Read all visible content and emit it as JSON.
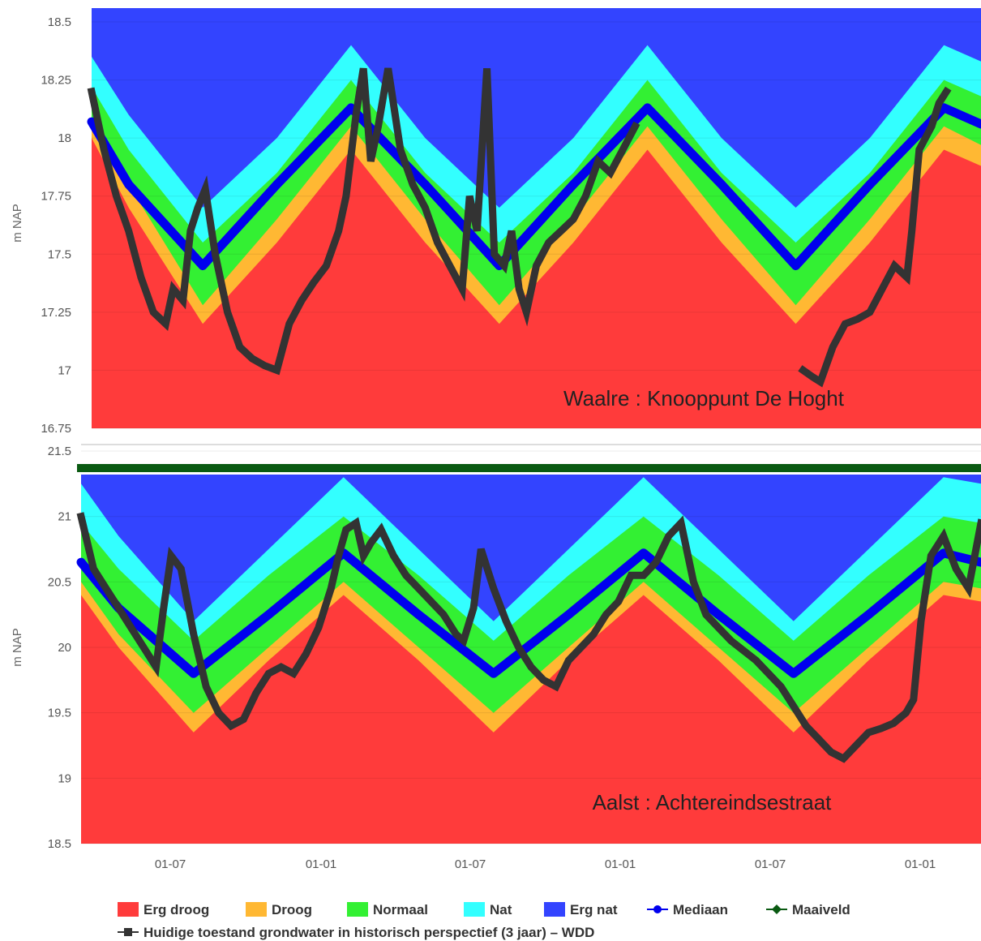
{
  "chart_data": {
    "type": "area",
    "x_ticks": [
      "01-07",
      "01-01",
      "01-07",
      "01-01",
      "01-07",
      "01-01"
    ],
    "colors": {
      "erg_droog": "#ff3b3b",
      "droog": "#ffb833",
      "normaal": "#33f033",
      "nat": "#33ffff",
      "erg_nat": "#3344ff",
      "mediaan": "#0000ee",
      "maaiveld": "#0a5a12",
      "wdd": "#333333"
    },
    "legend": {
      "placement": "bottom",
      "items": [
        {
          "key": "erg_droog",
          "label": "Erg droog",
          "symbol": "box"
        },
        {
          "key": "droog",
          "label": "Droog",
          "symbol": "box"
        },
        {
          "key": "normaal",
          "label": "Normaal",
          "symbol": "box"
        },
        {
          "key": "nat",
          "label": "Nat",
          "symbol": "box"
        },
        {
          "key": "erg_nat",
          "label": "Erg nat",
          "symbol": "box"
        },
        {
          "key": "mediaan",
          "label": "Mediaan",
          "symbol": "line-dot"
        },
        {
          "key": "maaiveld",
          "label": "Maaiveld",
          "symbol": "line-diamond"
        },
        {
          "key": "wdd",
          "label": "Huidige toestand grondwater in historisch perspectief (3 jaar) – WDD",
          "symbol": "line-square"
        }
      ]
    },
    "panels": [
      {
        "label": "Waalre : Knooppunt De Hoght",
        "ylabel": "m NAP",
        "ylim": [
          16.75,
          18.5
        ],
        "yticks": [
          "18.5",
          "18.25",
          "18",
          "17.75",
          "17.5",
          "17.25",
          "17",
          "16.75"
        ],
        "bands": {
          "x": [
            0,
            1.5,
            4.5,
            7.5,
            10.5,
            13.5,
            16.5,
            19.5,
            22.5,
            25.5,
            28.5,
            31.5,
            34.5,
            36
          ],
          "droog_bottom": [
            18.0,
            17.7,
            17.2,
            17.55,
            17.95,
            17.55,
            17.2,
            17.55,
            17.95,
            17.55,
            17.2,
            17.55,
            17.95,
            17.88
          ],
          "normaal_bottom": [
            18.05,
            17.8,
            17.28,
            17.65,
            18.05,
            17.65,
            17.28,
            17.65,
            18.05,
            17.65,
            17.28,
            17.65,
            18.05,
            17.97
          ],
          "nat_bottom": [
            18.22,
            17.95,
            17.55,
            17.85,
            18.25,
            17.85,
            17.55,
            17.85,
            18.25,
            17.85,
            17.55,
            17.85,
            18.25,
            18.18
          ],
          "ergnat_bottom": [
            18.35,
            18.1,
            17.7,
            18.0,
            18.4,
            18.0,
            17.7,
            18.0,
            18.4,
            18.0,
            17.7,
            18.0,
            18.4,
            18.33
          ]
        },
        "mediaan": {
          "x": [
            0,
            1.5,
            4.5,
            7.5,
            10.5,
            13.5,
            16.5,
            19.5,
            22.5,
            25.5,
            28.5,
            31.5,
            34.5,
            36
          ],
          "y": [
            18.07,
            17.8,
            17.45,
            17.8,
            18.13,
            17.8,
            17.45,
            17.8,
            18.13,
            17.8,
            17.45,
            17.8,
            18.13,
            18.06
          ]
        },
        "wdd": [
          {
            "x": [
              0,
              0.5,
              1,
              1.5,
              2,
              2.5,
              3,
              3.3,
              3.7,
              4,
              4.3,
              4.6,
              5,
              5.5,
              6,
              6.5,
              7,
              7.5,
              8,
              8.5,
              9,
              9.5,
              10,
              10.3,
              10.7,
              11,
              11.3,
              11.6,
              12,
              12.5,
              13,
              13.5,
              14,
              14.5,
              15,
              15.3,
              15.6,
              16,
              16.3,
              16.7,
              17,
              17.3,
              17.6,
              18,
              18.5,
              19,
              19.5,
              20,
              20.5,
              21,
              21.5,
              22
            ],
            "y": [
              18.2,
              17.95,
              17.75,
              17.6,
              17.4,
              17.25,
              17.2,
              17.35,
              17.3,
              17.6,
              17.7,
              17.78,
              17.5,
              17.25,
              17.1,
              17.05,
              17.02,
              17.0,
              17.2,
              17.3,
              17.38,
              17.45,
              17.6,
              17.75,
              18.1,
              18.3,
              17.9,
              18.05,
              18.3,
              17.95,
              17.8,
              17.7,
              17.55,
              17.45,
              17.35,
              17.75,
              17.6,
              18.3,
              17.5,
              17.45,
              17.6,
              17.35,
              17.25,
              17.45,
              17.55,
              17.6,
              17.65,
              17.75,
              17.9,
              17.85,
              17.95,
              18.05
            ]
          },
          {
            "x": [
              28.8,
              29.2,
              29.5,
              30,
              30.5,
              31,
              31.5,
              32,
              32.5,
              33,
              33.2,
              33.5,
              34,
              34.3,
              34.6
            ],
            "y": [
              17.0,
              16.97,
              16.95,
              17.1,
              17.2,
              17.22,
              17.25,
              17.35,
              17.45,
              17.4,
              17.6,
              17.95,
              18.05,
              18.15,
              18.2
            ]
          }
        ]
      },
      {
        "label": "Aalst : Achtereindsestraat",
        "ylabel": "m NAP",
        "ylim": [
          18.5,
          21.5
        ],
        "yticks": [
          "21.5",
          "21",
          "20.5",
          "20",
          "19.5",
          "19",
          "18.5"
        ],
        "maaiveld": 21.37,
        "bands": {
          "x": [
            0,
            1.5,
            4.5,
            7.5,
            10.5,
            13.5,
            16.5,
            19.5,
            22.5,
            25.5,
            28.5,
            31.5,
            34.5,
            36
          ],
          "droog_bottom": [
            20.4,
            20.0,
            19.35,
            19.9,
            20.4,
            19.9,
            19.35,
            19.9,
            20.4,
            19.9,
            19.35,
            19.9,
            20.4,
            20.35
          ],
          "normaal_bottom": [
            20.5,
            20.1,
            19.5,
            20.0,
            20.5,
            20.0,
            19.5,
            20.0,
            20.5,
            20.0,
            19.5,
            20.0,
            20.5,
            20.45
          ],
          "nat_bottom": [
            20.95,
            20.6,
            20.05,
            20.55,
            21.0,
            20.55,
            20.05,
            20.55,
            21.0,
            20.55,
            20.05,
            20.55,
            21.0,
            20.95
          ],
          "ergnat_bottom": [
            21.25,
            20.85,
            20.2,
            20.75,
            21.3,
            20.75,
            20.2,
            20.75,
            21.3,
            20.75,
            20.2,
            20.75,
            21.3,
            21.25
          ]
        },
        "mediaan": {
          "x": [
            0,
            1.5,
            4.5,
            7.5,
            10.5,
            13.5,
            16.5,
            19.5,
            22.5,
            25.5,
            28.5,
            31.5,
            34.5,
            36
          ],
          "y": [
            20.65,
            20.3,
            19.8,
            20.25,
            20.72,
            20.25,
            19.8,
            20.25,
            20.72,
            20.25,
            19.8,
            20.25,
            20.72,
            20.65
          ]
        },
        "wdd": [
          {
            "x": [
              0,
              0.5,
              1,
              1.5,
              2,
              2.5,
              3,
              3.3,
              3.6,
              4,
              4.5,
              5,
              5.5,
              6,
              6.5,
              7,
              7.5,
              8,
              8.5,
              9,
              9.5,
              10,
              10.3,
              10.6,
              11,
              11.3,
              11.6,
              12,
              12.5,
              13,
              13.5,
              14,
              14.5,
              15,
              15.3,
              15.7,
              16,
              16.5,
              17,
              17.5,
              18,
              18.5,
              19,
              19.5,
              20,
              20.5,
              21,
              21.5,
              22,
              22.5,
              23,
              23.5,
              24,
              24.5,
              25,
              26,
              27,
              28,
              28.5,
              29,
              29.5,
              30,
              30.5,
              31,
              31.5,
              32,
              32.5,
              33,
              33.3,
              33.6,
              34,
              34.5,
              35,
              35.5,
              36
            ],
            "y": [
              21.0,
              20.6,
              20.45,
              20.3,
              20.15,
              20.0,
              19.85,
              20.3,
              20.7,
              20.6,
              20.1,
              19.7,
              19.5,
              19.4,
              19.45,
              19.65,
              19.8,
              19.85,
              19.8,
              19.95,
              20.15,
              20.45,
              20.7,
              20.9,
              20.95,
              20.7,
              20.8,
              20.9,
              20.7,
              20.55,
              20.45,
              20.35,
              20.25,
              20.1,
              20.05,
              20.3,
              20.75,
              20.45,
              20.2,
              20.0,
              19.85,
              19.75,
              19.7,
              19.9,
              20.0,
              20.1,
              20.25,
              20.35,
              20.55,
              20.55,
              20.65,
              20.85,
              20.95,
              20.5,
              20.25,
              20.05,
              19.9,
              19.7,
              19.55,
              19.4,
              19.3,
              19.2,
              19.15,
              19.25,
              19.35,
              19.38,
              19.42,
              19.5,
              19.6,
              20.2,
              20.7,
              20.85,
              20.6,
              20.45,
              20.95
            ]
          }
        ]
      }
    ]
  }
}
